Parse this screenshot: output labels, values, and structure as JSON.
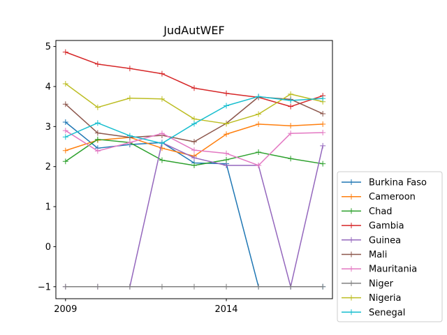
{
  "chart_data": {
    "type": "line",
    "title": "JudAutWEF",
    "xlabel": "",
    "ylabel": "",
    "x": [
      2009,
      2010,
      2011,
      2012,
      2013,
      2014,
      2015,
      2016,
      2017
    ],
    "xlim": [
      2008.7,
      2017.3
    ],
    "ylim": [
      -1.3,
      5.15
    ],
    "xticks": [
      2009,
      2014
    ],
    "yticks": [
      -1,
      0,
      1,
      2,
      3,
      4,
      5
    ],
    "ytick_labels": [
      "−1",
      "0",
      "1",
      "2",
      "3",
      "4",
      "5"
    ],
    "grid": false,
    "legend": "lower-right-outside",
    "series": [
      {
        "name": "Burkina Faso",
        "color": "#1f77b4",
        "values": [
          3.11,
          2.46,
          2.55,
          2.6,
          2.09,
          2.07,
          -1.0,
          -1.0,
          -1.0
        ]
      },
      {
        "name": "Cameroon",
        "color": "#ff7f0e",
        "values": [
          2.4,
          2.66,
          2.73,
          2.46,
          2.26,
          2.81,
          3.06,
          3.02,
          3.06
        ]
      },
      {
        "name": "Chad",
        "color": "#2ca02c",
        "values": [
          2.13,
          2.68,
          2.6,
          2.16,
          2.03,
          2.17,
          2.36,
          2.2,
          2.07
        ]
      },
      {
        "name": "Gambia",
        "color": "#d62728",
        "values": [
          4.86,
          4.56,
          4.45,
          4.32,
          3.96,
          3.83,
          3.73,
          3.5,
          3.77
        ]
      },
      {
        "name": "Guinea",
        "color": "#9467bd",
        "values": [
          -1.0,
          -1.0,
          -1.0,
          2.6,
          2.22,
          2.03,
          2.03,
          -1.0,
          2.52
        ]
      },
      {
        "name": "Mali",
        "color": "#8c564b",
        "values": [
          3.56,
          2.84,
          2.73,
          2.78,
          2.62,
          3.08,
          3.74,
          3.68,
          3.32
        ]
      },
      {
        "name": "Mauritania",
        "color": "#e377c2",
        "values": [
          2.9,
          2.39,
          2.6,
          2.83,
          2.41,
          2.33,
          2.03,
          2.83,
          2.85
        ]
      },
      {
        "name": "Niger",
        "color": "#7f7f7f",
        "values": [
          -1.0,
          -1.0,
          -1.0,
          -1.0,
          -1.0,
          -1.0,
          -1.0,
          -1.0,
          -1.0
        ]
      },
      {
        "name": "Nigeria",
        "color": "#bcbd22",
        "values": [
          4.07,
          3.48,
          3.71,
          3.69,
          3.19,
          3.07,
          3.31,
          3.81,
          3.62
        ]
      },
      {
        "name": "Senegal",
        "color": "#17becf",
        "values": [
          2.74,
          3.09,
          2.77,
          2.58,
          3.07,
          3.52,
          3.75,
          3.65,
          3.7
        ]
      }
    ]
  }
}
